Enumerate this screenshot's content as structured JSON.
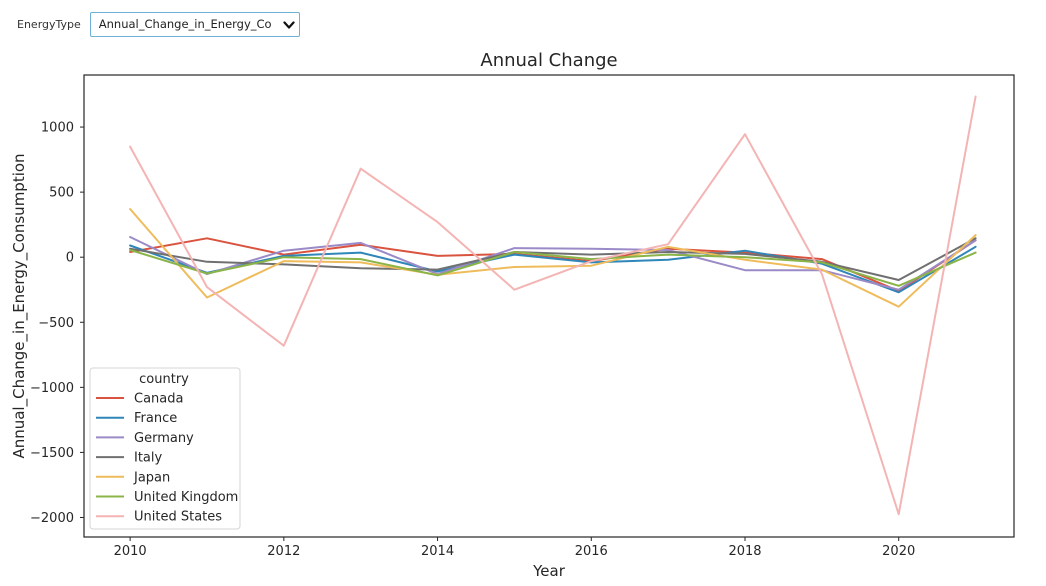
{
  "control": {
    "label": "EnergyType",
    "selected_value": "Annual_Change_in_Energy_Co",
    "icon": "chevron-down-icon"
  },
  "chart_data": {
    "type": "line",
    "title": "Annual Change",
    "xlabel": "Year",
    "ylabel": "Annual_Change_in_Energy_Consumption",
    "xlim": [
      2009.4,
      2021.5
    ],
    "ylim": [
      -2150,
      1400
    ],
    "xticks": [
      2010,
      2012,
      2014,
      2016,
      2018,
      2020
    ],
    "yticks": [
      1000,
      500,
      0,
      -500,
      -1000,
      -1500,
      -2000
    ],
    "ytick_labels": [
      "1000",
      "500",
      "0",
      "−500",
      "−1000",
      "−1500",
      "−2000"
    ],
    "grid": false,
    "legend": {
      "title": "country",
      "placement": "lower-left"
    },
    "x": [
      2010,
      2011,
      2012,
      2013,
      2014,
      2015,
      2016,
      2017,
      2018,
      2019,
      2020,
      2021
    ],
    "series": [
      {
        "name": "Canada",
        "color": "#d9533f",
        "values": [
          40,
          145,
          20,
          95,
          10,
          25,
          -30,
          65,
          35,
          -15,
          -260,
          130
        ]
      },
      {
        "name": "France",
        "color": "#2f86b8",
        "values": [
          90,
          -120,
          10,
          35,
          -110,
          20,
          -40,
          -20,
          50,
          -50,
          -270,
          80
        ]
      },
      {
        "name": "Germany",
        "color": "#9a8ac8",
        "values": [
          155,
          -130,
          50,
          110,
          -130,
          70,
          65,
          55,
          -100,
          -100,
          -250,
          130
        ]
      },
      {
        "name": "Italy",
        "color": "#707070",
        "values": [
          65,
          -35,
          -55,
          -85,
          -95,
          40,
          20,
          40,
          25,
          -35,
          -175,
          145
        ]
      },
      {
        "name": "Japan",
        "color": "#efbc5c",
        "values": [
          370,
          -310,
          -30,
          -40,
          -135,
          -75,
          -65,
          80,
          -20,
          -95,
          -380,
          170
        ]
      },
      {
        "name": "United Kingdom",
        "color": "#8bb448",
        "values": [
          55,
          -125,
          0,
          -15,
          -140,
          40,
          -15,
          20,
          0,
          -40,
          -220,
          35
        ]
      },
      {
        "name": "United States",
        "color": "#f4b4b4",
        "values": [
          850,
          -230,
          -680,
          680,
          270,
          -250,
          -30,
          100,
          945,
          -130,
          -1975,
          1235
        ]
      }
    ]
  }
}
